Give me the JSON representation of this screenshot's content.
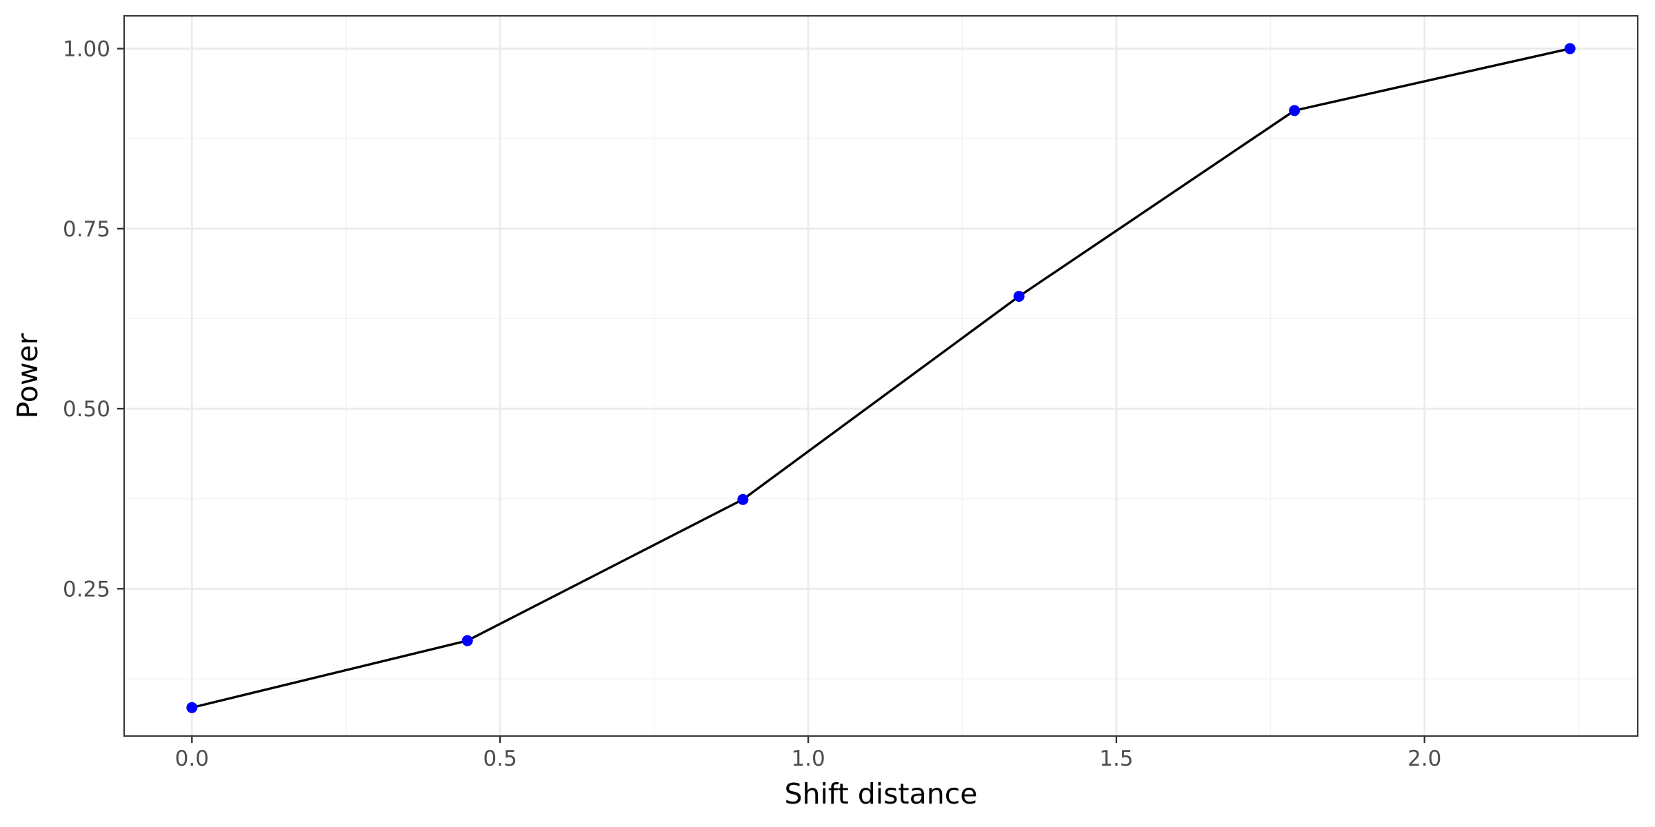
{
  "chart_data": {
    "type": "line",
    "title": "",
    "xlabel": "Shift distance",
    "ylabel": "Power",
    "x": [
      0.0,
      0.447,
      0.894,
      1.342,
      1.789,
      2.236
    ],
    "series": [
      {
        "values": [
          0.085,
          0.178,
          0.374,
          0.656,
          0.914,
          1.0
        ]
      }
    ],
    "xlim": [
      -0.11,
      2.346
    ],
    "ylim": [
      0.0455,
      1.0455
    ],
    "xticks": [
      0.0,
      0.5,
      1.0,
      1.5,
      2.0
    ],
    "xtick_labels": [
      "0.0",
      "0.5",
      "1.0",
      "1.5",
      "2.0"
    ],
    "yticks": [
      0.25,
      0.5,
      0.75,
      1.0
    ],
    "ytick_labels": [
      "0.25",
      "0.50",
      "0.75",
      "1.00"
    ],
    "grid": true,
    "legend": "none",
    "colors": {
      "line": "#000000",
      "points": "#0000ff",
      "grid_major": "#ebebeb",
      "grid_minor": "#f2f2f2",
      "panel_border": "#333333"
    }
  }
}
